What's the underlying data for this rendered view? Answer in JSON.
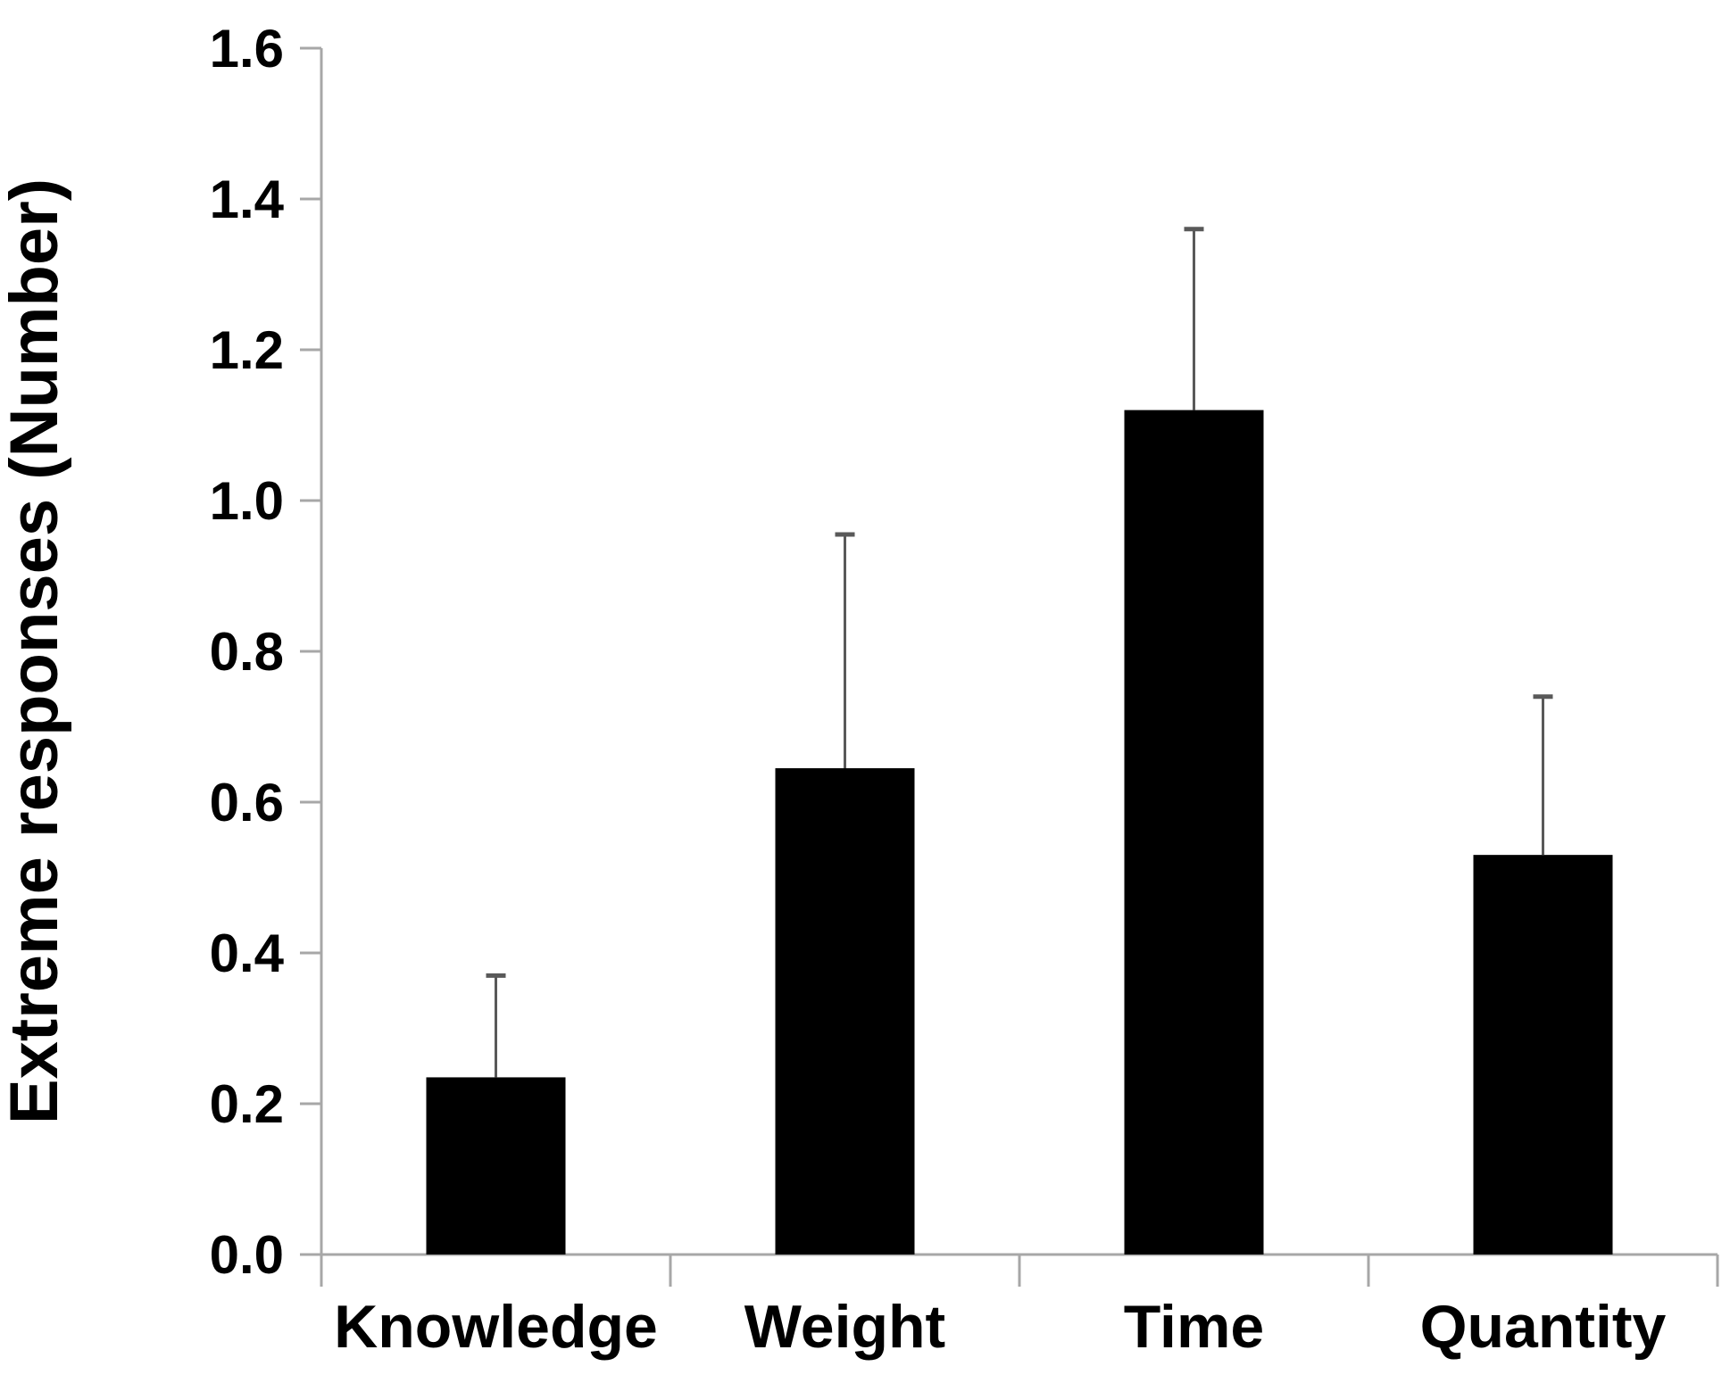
{
  "chart_data": {
    "type": "bar",
    "categories": [
      "Knowledge",
      "Weight",
      "Time",
      "Quantity"
    ],
    "values": [
      0.235,
      0.645,
      1.12,
      0.53
    ],
    "errors_plus": [
      0.135,
      0.31,
      0.24,
      0.21
    ],
    "error_tops": [
      0.37,
      0.955,
      1.36,
      0.74
    ],
    "title": "",
    "xlabel": "",
    "ylabel": "Extreme responses (Number)",
    "ylim": [
      0.0,
      1.6
    ],
    "ytick_step": 0.2,
    "ytick_labels": [
      "0.0",
      "0.2",
      "0.4",
      "0.6",
      "0.8",
      "1.0",
      "1.2",
      "1.4",
      "1.6"
    ],
    "grid": false,
    "legend": "none",
    "colors": {
      "bar": "#000000",
      "axis": "#a7a7a7",
      "error_bar": "#595959",
      "text": "#000000",
      "background": "#ffffff"
    }
  }
}
